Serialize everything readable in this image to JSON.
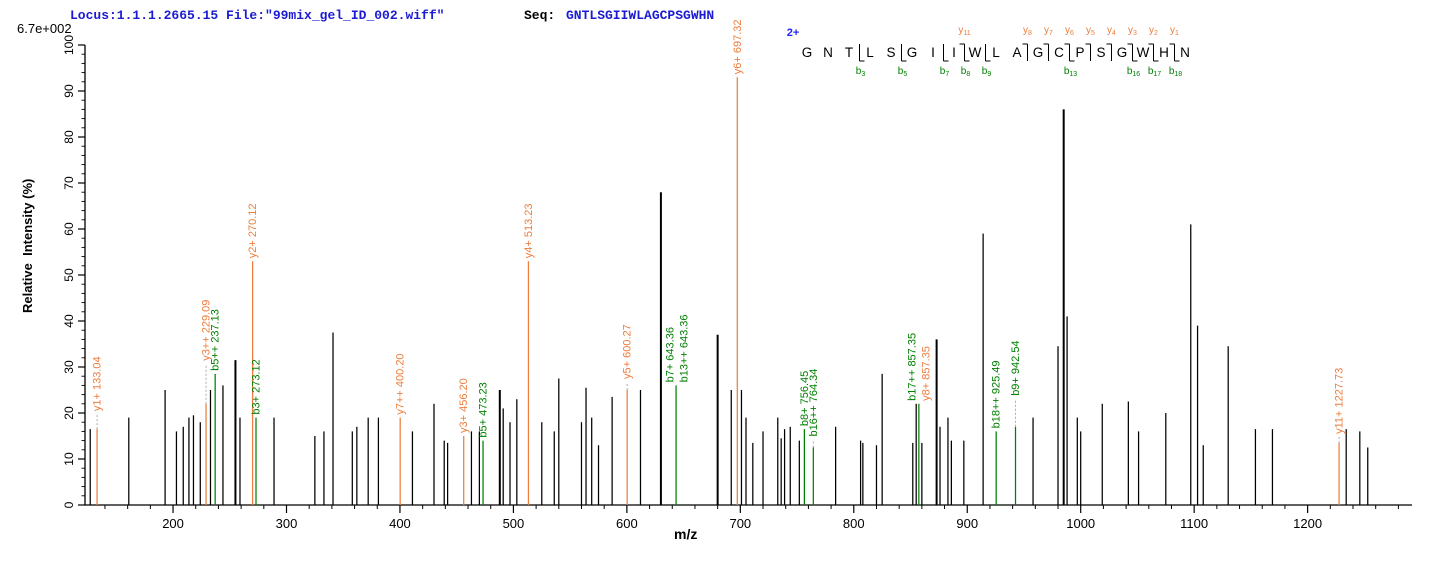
{
  "header": {
    "locus_file": "Locus:1.1.1.2665.15 File:\"99mix_gel_ID_002.wiff\"",
    "seq_label": "Seq:",
    "sequence": "GNTLSGIIWLAGCPSGWHN"
  },
  "colors": {
    "header_blue": "#1b1bd3",
    "charge_blue": "#2424ff",
    "y_ion_orange": "#ed7d3c",
    "b_ion_green": "#008000",
    "peak_black": "#000000",
    "leader_gray": "#aaaaaa",
    "axis_black": "#000000"
  },
  "peptide_annotation": {
    "charge_label": "2+",
    "residues": [
      "G",
      "N",
      "T",
      "L",
      "S",
      "G",
      "I",
      "I",
      "W",
      "L",
      "A",
      "G",
      "C",
      "P",
      "S",
      "G",
      "W",
      "H",
      "N"
    ],
    "sites": [
      {
        "after": 3,
        "b": "b3"
      },
      {
        "after": 5,
        "b": "b5"
      },
      {
        "after": 7,
        "b": "b7"
      },
      {
        "after": 8,
        "b": "b8",
        "y": "y11"
      },
      {
        "after": 9,
        "b": "b9"
      },
      {
        "after": 11,
        "y": "y8"
      },
      {
        "after": 12,
        "y": "y7"
      },
      {
        "after": 13,
        "b": "b13",
        "y": "y6"
      },
      {
        "after": 14,
        "y": "y5"
      },
      {
        "after": 15,
        "y": "y4"
      },
      {
        "after": 16,
        "b": "b16",
        "y": "y3"
      },
      {
        "after": 17,
        "b": "b17",
        "y": "y2"
      },
      {
        "after": 18,
        "b": "b18",
        "y": "y1"
      }
    ]
  },
  "chart_data": {
    "type": "bar",
    "kind": "ms2-fragmentation-spectrum",
    "title": "",
    "xlabel": "m/z",
    "ylabel": "Relative  Intensity (%)",
    "intensity_scale_max": "6.7e+002",
    "xlim": [
      122.4,
      1292
    ],
    "ylim": [
      0,
      100
    ],
    "x_ticks": [
      200,
      300,
      400,
      500,
      600,
      700,
      800,
      900,
      1000,
      1100,
      1200
    ],
    "x_minor_step": 20,
    "y_ticks": [
      0,
      10,
      20,
      30,
      40,
      50,
      60,
      70,
      80,
      90,
      100
    ],
    "y_minor_step": 2,
    "grid": false,
    "legend": "none",
    "peaks": [
      {
        "mz": 127,
        "i": 16.5
      },
      {
        "mz": 133.04,
        "i": 16.5,
        "ion": "y",
        "labels": [
          {
            "text": "y1+ 133.04",
            "ion": "y"
          }
        ],
        "leader": 15
      },
      {
        "mz": 161,
        "i": 19
      },
      {
        "mz": 193,
        "i": 25
      },
      {
        "mz": 203,
        "i": 16
      },
      {
        "mz": 209,
        "i": 17
      },
      {
        "mz": 214,
        "i": 19
      },
      {
        "mz": 218,
        "i": 19.5
      },
      {
        "mz": 224,
        "i": 18
      },
      {
        "mz": 229.09,
        "i": 22,
        "ion": "y",
        "labels": [
          {
            "text": "y3++ 229.09",
            "ion": "y"
          }
        ],
        "leader": 40
      },
      {
        "mz": 233,
        "i": 25
      },
      {
        "mz": 237.13,
        "i": 28.5,
        "ion": "b",
        "labels": [
          {
            "text": "b5++ 237.13",
            "ion": "b"
          }
        ]
      },
      {
        "mz": 244,
        "i": 26
      },
      {
        "mz": 255,
        "i": 31.5,
        "w": 2
      },
      {
        "mz": 259,
        "i": 19
      },
      {
        "mz": 270.12,
        "i": 53,
        "ion": "y",
        "labels": [
          {
            "text": "y2+ 270.12",
            "ion": "y"
          }
        ]
      },
      {
        "mz": 273.12,
        "i": 19,
        "ion": "b",
        "labels": [
          {
            "text": "b3+ 273.12",
            "ion": "b"
          }
        ]
      },
      {
        "mz": 289,
        "i": 19
      },
      {
        "mz": 325,
        "i": 15
      },
      {
        "mz": 333,
        "i": 16
      },
      {
        "mz": 341,
        "i": 37.5
      },
      {
        "mz": 358,
        "i": 16
      },
      {
        "mz": 362,
        "i": 17
      },
      {
        "mz": 372,
        "i": 19
      },
      {
        "mz": 381,
        "i": 19
      },
      {
        "mz": 400.2,
        "i": 19,
        "ion": "y",
        "labels": [
          {
            "text": "y7++ 400.20",
            "ion": "y"
          }
        ]
      },
      {
        "mz": 411,
        "i": 16
      },
      {
        "mz": 430,
        "i": 22
      },
      {
        "mz": 439,
        "i": 14
      },
      {
        "mz": 442,
        "i": 13.5
      },
      {
        "mz": 456.2,
        "i": 15,
        "ion": "y",
        "labels": [
          {
            "text": "y3+ 456.20",
            "ion": "y"
          }
        ]
      },
      {
        "mz": 463,
        "i": 16
      },
      {
        "mz": 470,
        "i": 16
      },
      {
        "mz": 473.23,
        "i": 14,
        "ion": "b",
        "labels": [
          {
            "text": "b5+ 473.23",
            "ion": "b"
          }
        ]
      },
      {
        "mz": 488,
        "i": 25,
        "w": 2
      },
      {
        "mz": 491,
        "i": 21
      },
      {
        "mz": 497,
        "i": 18
      },
      {
        "mz": 503,
        "i": 23
      },
      {
        "mz": 513.23,
        "i": 53,
        "ion": "y",
        "labels": [
          {
            "text": "y4+ 513.23",
            "ion": "y"
          }
        ]
      },
      {
        "mz": 525,
        "i": 18
      },
      {
        "mz": 536,
        "i": 16
      },
      {
        "mz": 540,
        "i": 27.5
      },
      {
        "mz": 560,
        "i": 18
      },
      {
        "mz": 564,
        "i": 25.5
      },
      {
        "mz": 569,
        "i": 19
      },
      {
        "mz": 575,
        "i": 13
      },
      {
        "mz": 587,
        "i": 23.5
      },
      {
        "mz": 600.27,
        "i": 25,
        "ion": "y",
        "labels": [
          {
            "text": "y5+ 600.27",
            "ion": "y"
          }
        ],
        "leader": 8
      },
      {
        "mz": 612,
        "i": 25
      },
      {
        "mz": 630,
        "i": 68,
        "w": 2
      },
      {
        "mz": 643.36,
        "i": 26,
        "ion": "b",
        "labels": [
          {
            "text": "b7+ 643.36",
            "ion": "b",
            "dx": -6
          },
          {
            "text": "b13++ 643.36",
            "ion": "b",
            "dx": 8
          }
        ]
      },
      {
        "mz": 680,
        "i": 37,
        "w": 2
      },
      {
        "mz": 692,
        "i": 25
      },
      {
        "mz": 697.32,
        "i": 93,
        "ion": "y",
        "labels": [
          {
            "text": "y6+ 697.32",
            "ion": "y"
          }
        ]
      },
      {
        "mz": 701,
        "i": 25
      },
      {
        "mz": 705,
        "i": 19
      },
      {
        "mz": 711,
        "i": 13.5
      },
      {
        "mz": 720,
        "i": 16
      },
      {
        "mz": 733,
        "i": 19
      },
      {
        "mz": 736,
        "i": 14.5
      },
      {
        "mz": 739,
        "i": 16.5
      },
      {
        "mz": 744,
        "i": 17
      },
      {
        "mz": 752,
        "i": 14
      },
      {
        "mz": 756.45,
        "i": 16.5,
        "ion": "b",
        "labels": [
          {
            "text": "b8+ 756.45",
            "ion": "b"
          }
        ]
      },
      {
        "mz": 764.34,
        "i": 12.5,
        "ion": "b",
        "labels": [
          {
            "text": "b16++ 764.34",
            "ion": "b"
          }
        ],
        "leader": 8
      },
      {
        "mz": 784,
        "i": 17
      },
      {
        "mz": 806,
        "i": 14
      },
      {
        "mz": 808,
        "i": 13.5
      },
      {
        "mz": 820,
        "i": 13
      },
      {
        "mz": 825,
        "i": 28.5
      },
      {
        "mz": 852,
        "i": 13.5
      },
      {
        "mz": 855,
        "i": 22
      },
      {
        "mz": 857.35,
        "i": 22,
        "ion": "b",
        "labels": [
          {
            "text": "b17++ 857.35",
            "ion": "b",
            "dx": -7
          },
          {
            "text": "y8+ 857.35",
            "ion": "y",
            "dx": 7
          }
        ]
      },
      {
        "mz": 860,
        "i": 13.5
      },
      {
        "mz": 873,
        "i": 36,
        "w": 2
      },
      {
        "mz": 876,
        "i": 17
      },
      {
        "mz": 883,
        "i": 19
      },
      {
        "mz": 886,
        "i": 14
      },
      {
        "mz": 897,
        "i": 14
      },
      {
        "mz": 914,
        "i": 59
      },
      {
        "mz": 925.49,
        "i": 16,
        "ion": "b",
        "labels": [
          {
            "text": "b18++ 925.49",
            "ion": "b"
          }
        ]
      },
      {
        "mz": 942.54,
        "i": 17,
        "ion": "b",
        "labels": [
          {
            "text": "b9+ 942.54",
            "ion": "b"
          }
        ],
        "leader": 28
      },
      {
        "mz": 958,
        "i": 19
      },
      {
        "mz": 980,
        "i": 34.5
      },
      {
        "mz": 985,
        "i": 86,
        "w": 2
      },
      {
        "mz": 988,
        "i": 41
      },
      {
        "mz": 997,
        "i": 19
      },
      {
        "mz": 1000,
        "i": 16
      },
      {
        "mz": 1019,
        "i": 22
      },
      {
        "mz": 1042,
        "i": 22.5
      },
      {
        "mz": 1051,
        "i": 16
      },
      {
        "mz": 1075,
        "i": 20
      },
      {
        "mz": 1097,
        "i": 61
      },
      {
        "mz": 1103,
        "i": 39
      },
      {
        "mz": 1108,
        "i": 13
      },
      {
        "mz": 1130,
        "i": 34.5
      },
      {
        "mz": 1154,
        "i": 16.5
      },
      {
        "mz": 1169,
        "i": 16.5
      },
      {
        "mz": 1227.73,
        "i": 13.5,
        "ion": "y",
        "labels": [
          {
            "text": "y11+ 1227.73",
            "ion": "y"
          }
        ],
        "leader": 6
      },
      {
        "mz": 1234,
        "i": 16.5
      },
      {
        "mz": 1246,
        "i": 16
      },
      {
        "mz": 1253,
        "i": 12.5
      }
    ]
  }
}
